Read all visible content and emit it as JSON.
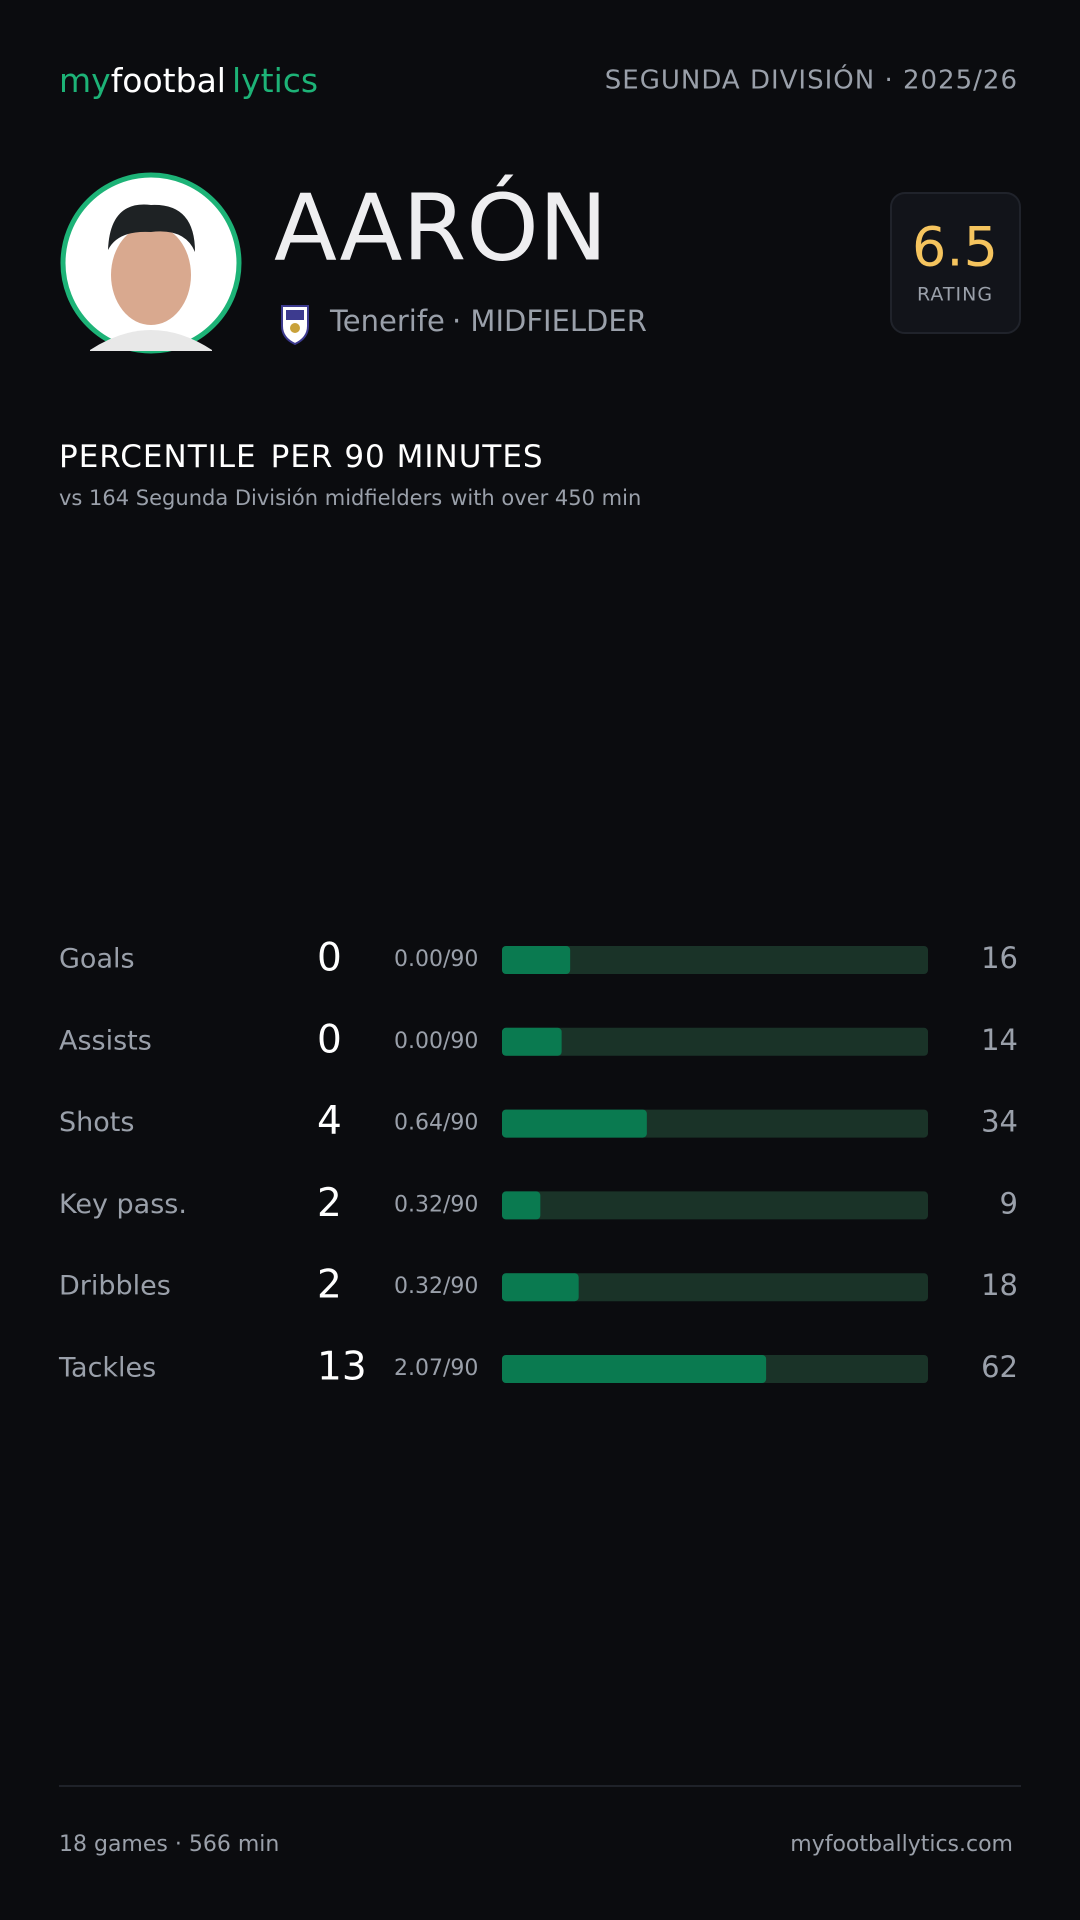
{
  "brand": {
    "parts": [
      "my",
      "footbal",
      "lytics"
    ]
  },
  "league": "SEGUNDA DIVISIÓN · 2025/26",
  "player": {
    "name": "AARÓN",
    "team": "Tenerife",
    "position": "· MIDFIELDER",
    "rating": "6.5",
    "rating_label": "RATING"
  },
  "section": {
    "title_parts": [
      "PERCENTILE",
      "PER 90 MINUTES"
    ],
    "subtitle_parts": [
      "vs 164 Segunda División midfielders",
      "with over 450 min"
    ]
  },
  "stats": {
    "percentile_range": [
      0,
      100
    ],
    "rows": [
      {
        "label": "Goals",
        "total": 0,
        "per90": "0.00/90",
        "percentile": 16
      },
      {
        "label": "Assists",
        "total": 0,
        "per90": "0.00/90",
        "percentile": 14
      },
      {
        "label": "Shots",
        "total": 4,
        "per90": "0.64/90",
        "percentile": 34
      },
      {
        "label": "Key pass.",
        "total": 2,
        "per90": "0.32/90",
        "percentile": 9
      },
      {
        "label": "Dribbles",
        "total": 2,
        "per90": "0.32/90",
        "percentile": 18
      },
      {
        "label": "Tackles",
        "total": 13,
        "per90": "2.07/90",
        "percentile": 62
      }
    ]
  },
  "footer": {
    "left": "18 games · 566 min",
    "right": "myfootballytics.com"
  }
}
